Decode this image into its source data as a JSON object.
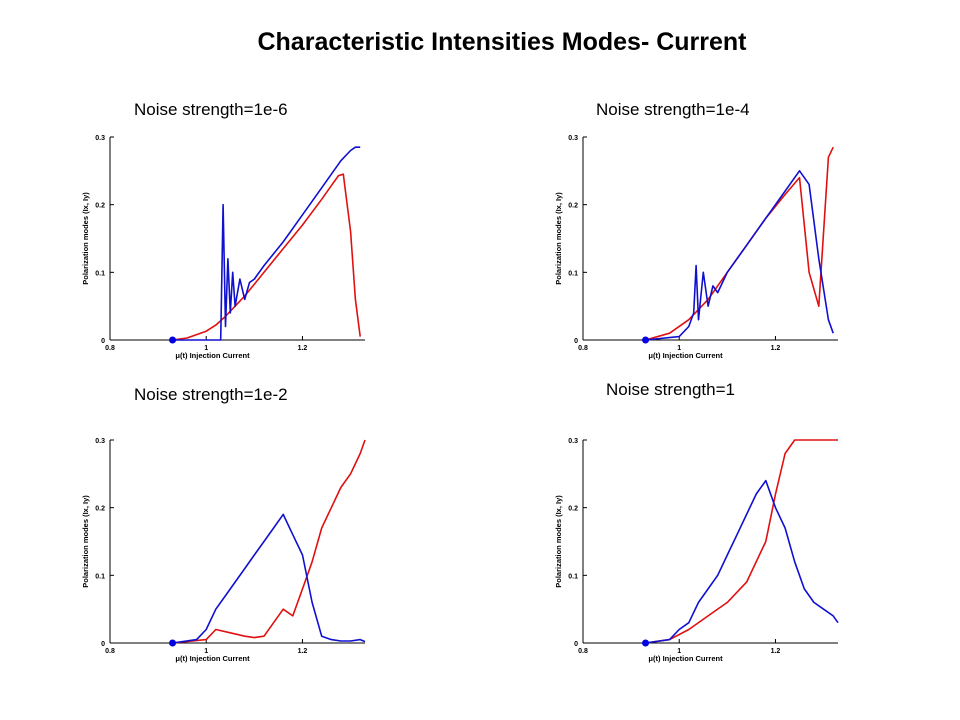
{
  "slide": {
    "title": "Characteristic  Intensities Modes- Current"
  },
  "chart_data": [
    {
      "type": "line",
      "caption": "Noise strength=1e-6",
      "xlabel": "μ(t) Injection Current",
      "ylabel": "Polarization modes (Ix, Iy)",
      "xlim": [
        0.8,
        1.33
      ],
      "ylim": [
        0,
        0.3
      ],
      "xticks": [
        "0.8",
        "1",
        "1.2"
      ],
      "yticks": [
        "0",
        "0.1",
        "0.2",
        "0.3"
      ],
      "start_marker": {
        "x": 0.93,
        "y": 0,
        "color": "#0000e0"
      },
      "series": [
        {
          "color": "#e01010",
          "x": [
            0.93,
            0.96,
            1.0,
            1.02,
            1.04,
            1.08,
            1.12,
            1.16,
            1.2,
            1.24,
            1.26,
            1.275,
            1.285,
            1.3,
            1.31,
            1.32
          ],
          "y": [
            0,
            0.003,
            0.013,
            0.022,
            0.035,
            0.065,
            0.1,
            0.135,
            0.17,
            0.208,
            0.228,
            0.243,
            0.245,
            0.16,
            0.06,
            0.005
          ]
        },
        {
          "color": "#1010d0",
          "x": [
            0.93,
            1.03,
            1.035,
            1.04,
            1.045,
            1.05,
            1.055,
            1.06,
            1.07,
            1.08,
            1.09,
            1.1,
            1.12,
            1.16,
            1.2,
            1.24,
            1.28,
            1.3,
            1.31,
            1.315,
            1.32
          ],
          "y": [
            0,
            0,
            0.2,
            0.02,
            0.12,
            0.04,
            0.1,
            0.05,
            0.09,
            0.06,
            0.085,
            0.09,
            0.11,
            0.145,
            0.185,
            0.225,
            0.265,
            0.28,
            0.285,
            0.285,
            0.285
          ]
        }
      ]
    },
    {
      "type": "line",
      "caption": "Noise strength=1e-4",
      "xlabel": "μ(t) Injection Current",
      "ylabel": "Polarization modes (Ix, Iy)",
      "xlim": [
        0.8,
        1.33
      ],
      "ylim": [
        0,
        0.3
      ],
      "xticks": [
        "0.8",
        "1",
        "1.2"
      ],
      "yticks": [
        "0",
        "0.1",
        "0.2",
        "0.3"
      ],
      "start_marker": {
        "x": 0.93,
        "y": 0,
        "color": "#0000e0"
      },
      "series": [
        {
          "color": "#e01010",
          "x": [
            0.93,
            0.98,
            1.02,
            1.06,
            1.1,
            1.14,
            1.18,
            1.22,
            1.25,
            1.27,
            1.29,
            1.31,
            1.32
          ],
          "y": [
            0,
            0.01,
            0.03,
            0.06,
            0.1,
            0.14,
            0.18,
            0.215,
            0.24,
            0.1,
            0.05,
            0.27,
            0.285
          ]
        },
        {
          "color": "#1010d0",
          "x": [
            0.93,
            1.0,
            1.02,
            1.03,
            1.035,
            1.04,
            1.05,
            1.06,
            1.07,
            1.08,
            1.1,
            1.14,
            1.18,
            1.22,
            1.25,
            1.27,
            1.29,
            1.31,
            1.32
          ],
          "y": [
            0,
            0.005,
            0.02,
            0.04,
            0.11,
            0.03,
            0.1,
            0.05,
            0.08,
            0.07,
            0.1,
            0.14,
            0.18,
            0.22,
            0.25,
            0.23,
            0.12,
            0.03,
            0.01
          ]
        }
      ]
    },
    {
      "type": "line",
      "caption": "Noise strength=1e-2",
      "xlabel": "μ(t) Injection Current",
      "ylabel": "Polarization modes (Ix, Iy)",
      "xlim": [
        0.8,
        1.33
      ],
      "ylim": [
        0,
        0.3
      ],
      "xticks": [
        "0.8",
        "1",
        "1.2"
      ],
      "yticks": [
        "0",
        "0.1",
        "0.2",
        "0.3"
      ],
      "start_marker": {
        "x": 0.93,
        "y": 0,
        "color": "#0000e0"
      },
      "series": [
        {
          "color": "#e01010",
          "x": [
            0.93,
            1.0,
            1.02,
            1.05,
            1.08,
            1.1,
            1.12,
            1.14,
            1.16,
            1.18,
            1.2,
            1.22,
            1.24,
            1.26,
            1.28,
            1.3,
            1.32,
            1.33
          ],
          "y": [
            0,
            0.005,
            0.02,
            0.015,
            0.01,
            0.008,
            0.01,
            0.03,
            0.05,
            0.04,
            0.08,
            0.12,
            0.17,
            0.2,
            0.23,
            0.25,
            0.28,
            0.3
          ]
        },
        {
          "color": "#1010d0",
          "x": [
            0.93,
            0.98,
            1.0,
            1.02,
            1.04,
            1.06,
            1.08,
            1.1,
            1.12,
            1.14,
            1.16,
            1.18,
            1.2,
            1.22,
            1.24,
            1.26,
            1.28,
            1.3,
            1.32,
            1.33
          ],
          "y": [
            0,
            0.005,
            0.02,
            0.05,
            0.07,
            0.09,
            0.11,
            0.13,
            0.15,
            0.17,
            0.19,
            0.16,
            0.13,
            0.06,
            0.01,
            0.005,
            0.003,
            0.003,
            0.005,
            0.002
          ]
        }
      ]
    },
    {
      "type": "line",
      "caption": "Noise strength=1",
      "xlabel": "μ(t) Injection Current",
      "ylabel": "Polarization modes (Ix, Iy)",
      "xlim": [
        0.8,
        1.33
      ],
      "ylim": [
        0,
        0.3
      ],
      "xticks": [
        "0.8",
        "1",
        "1.2"
      ],
      "yticks": [
        "0",
        "0.1",
        "0.2",
        "0.3"
      ],
      "start_marker": {
        "x": 0.93,
        "y": 0,
        "color": "#0000e0"
      },
      "series": [
        {
          "color": "#e01010",
          "x": [
            0.93,
            0.98,
            1.02,
            1.06,
            1.1,
            1.14,
            1.18,
            1.2,
            1.22,
            1.24,
            1.26,
            1.28,
            1.3,
            1.32,
            1.33
          ],
          "y": [
            0,
            0.005,
            0.02,
            0.04,
            0.06,
            0.09,
            0.15,
            0.22,
            0.28,
            0.3,
            0.3,
            0.3,
            0.3,
            0.3,
            0.3
          ]
        },
        {
          "color": "#1010d0",
          "x": [
            0.93,
            0.98,
            1.0,
            1.02,
            1.04,
            1.06,
            1.08,
            1.1,
            1.12,
            1.14,
            1.16,
            1.18,
            1.2,
            1.22,
            1.24,
            1.26,
            1.28,
            1.3,
            1.32,
            1.33
          ],
          "y": [
            0,
            0.005,
            0.02,
            0.03,
            0.06,
            0.08,
            0.1,
            0.13,
            0.16,
            0.19,
            0.22,
            0.24,
            0.2,
            0.17,
            0.12,
            0.08,
            0.06,
            0.05,
            0.04,
            0.03
          ]
        }
      ]
    }
  ]
}
